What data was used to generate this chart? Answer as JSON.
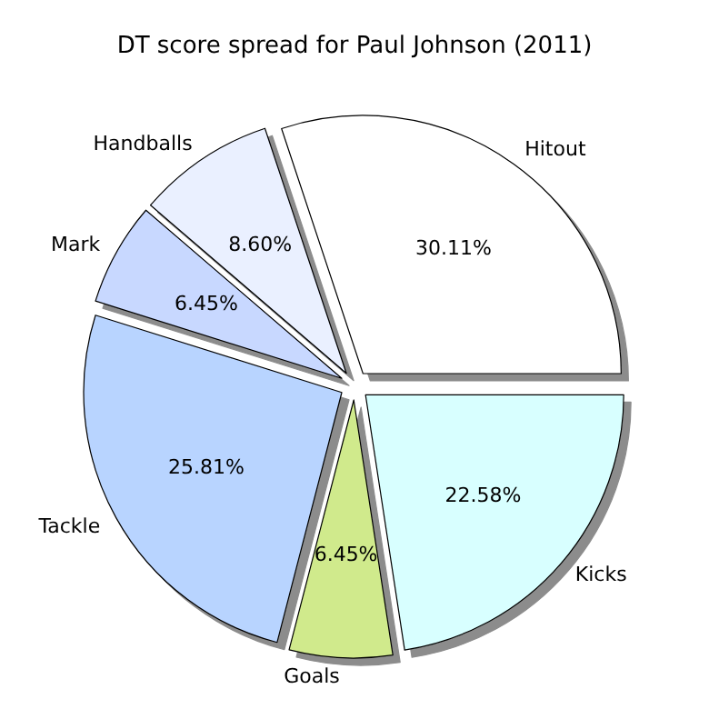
{
  "chart_data": {
    "type": "pie",
    "title": "DT score spread for Paul Johnson (2011)",
    "categories": [
      "Hitout",
      "Handballs",
      "Mark",
      "Tackle",
      "Goals",
      "Kicks"
    ],
    "values": [
      30.11,
      8.6,
      6.45,
      25.81,
      6.45,
      22.58
    ],
    "colors": [
      "#ffffff",
      "#eaf0ff",
      "#c8d8ff",
      "#b8d4ff",
      "#d0ea8c",
      "#d8ffff"
    ],
    "value_labels": [
      "30.11%",
      "8.60%",
      "6.45%",
      "25.81%",
      "6.45%",
      "22.58%"
    ],
    "legend": false
  }
}
